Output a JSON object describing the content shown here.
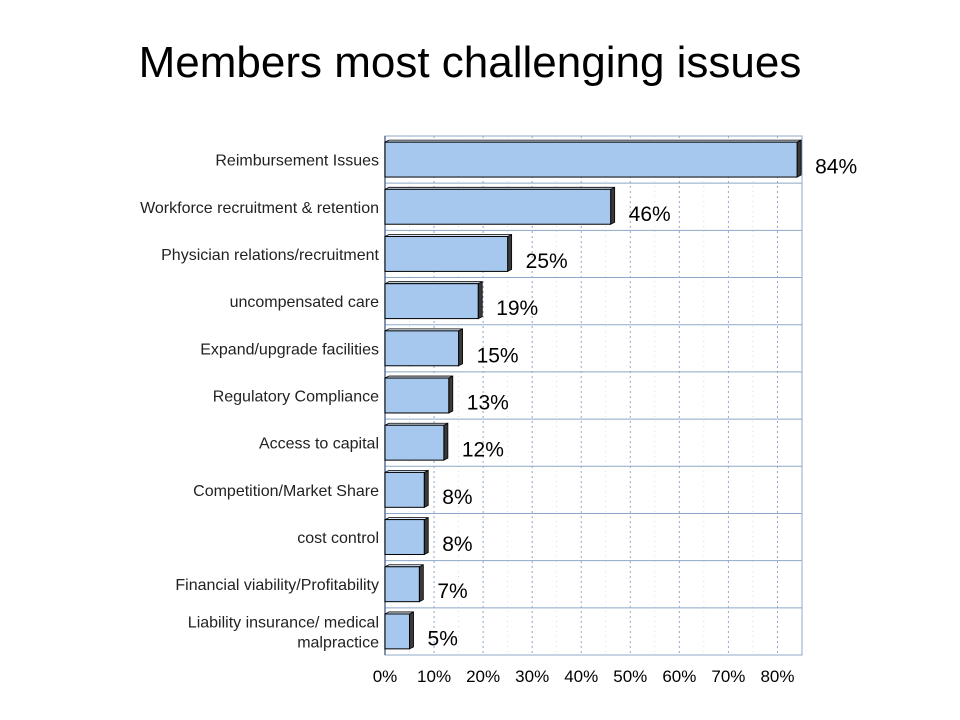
{
  "title": "Members most challenging issues",
  "chart_data": {
    "type": "bar",
    "orientation": "horizontal",
    "title": "Members most challenging issues",
    "categories": [
      "Reimbursement Issues",
      "Workforce recruitment & retention",
      "Physician relations/recruitment",
      "uncompensated care",
      "Expand/upgrade facilities",
      "Regulatory Compliance",
      "Access to capital",
      "Competition/Market Share",
      "cost control",
      "Financial viability/Profitability",
      "Liability insurance/ medical malpractice"
    ],
    "values": [
      84,
      46,
      25,
      19,
      15,
      13,
      12,
      8,
      8,
      7,
      5
    ],
    "value_labels": [
      "84%",
      "46%",
      "25%",
      "19%",
      "15%",
      "13%",
      "12%",
      "8%",
      "8%",
      "7%",
      "5%"
    ],
    "x_ticks": [
      "0%",
      "10%",
      "20%",
      "30%",
      "40%",
      "50%",
      "60%",
      "70%",
      "80%"
    ],
    "xlim": [
      0,
      85
    ],
    "xlabel": "",
    "ylabel": "",
    "grid": true,
    "colors": {
      "bar": "#a6c8ee",
      "bar_edge": "#000000",
      "bar_shadow": "#3a3a3a",
      "grid": "#8ea8c8"
    }
  }
}
